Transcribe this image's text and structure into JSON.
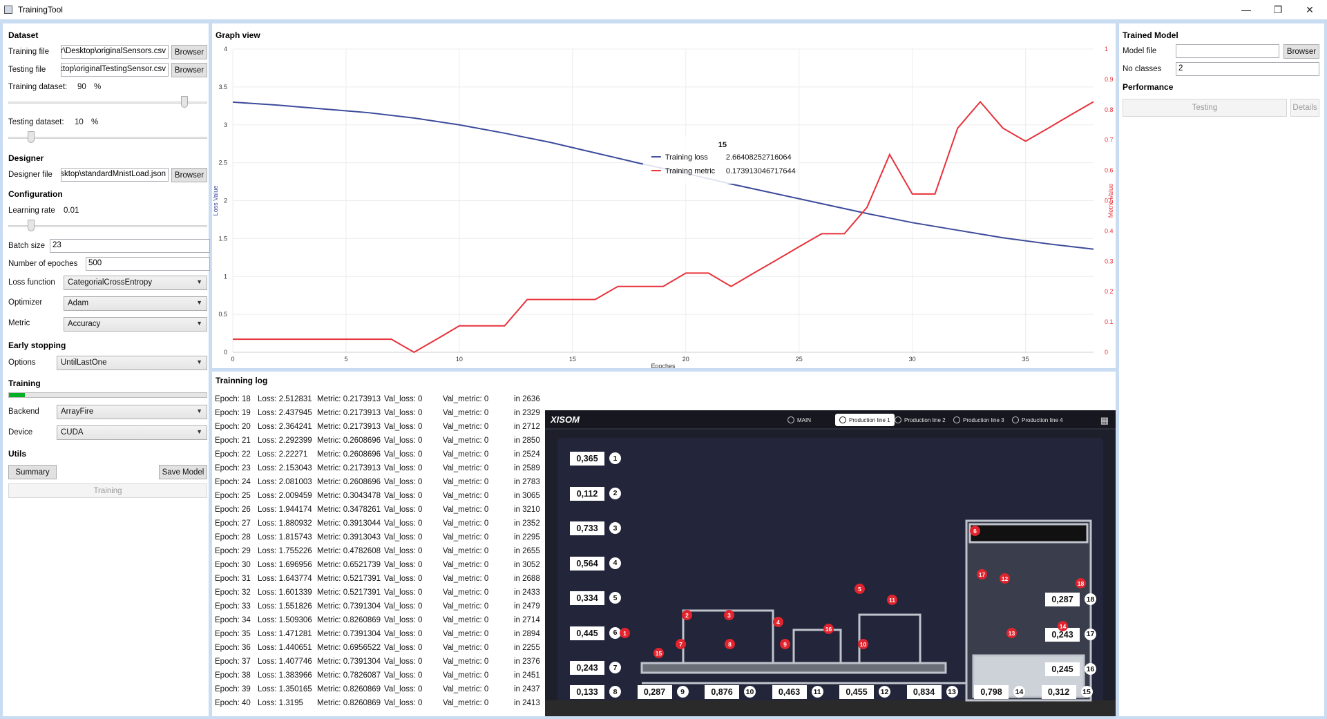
{
  "window": {
    "title": "TrainingTool"
  },
  "dataset": {
    "heading": "Dataset",
    "training_file_label": "Training file",
    "training_file_value": "C:\\Users\\user\\Desktop\\originalSensors.csv",
    "testing_file_label": "Testing file",
    "testing_file_value": "C:\\Users\\user\\Desktop\\originalTestingSensor.csv",
    "browse_label": "Browser",
    "training_dataset_label": "Training dataset:",
    "training_dataset_value": "90",
    "training_dataset_fraction": 0.9,
    "testing_dataset_label": "Testing dataset:",
    "testing_dataset_value": "10",
    "testing_dataset_fraction": 0.1,
    "percent": "%"
  },
  "designer": {
    "heading": "Designer",
    "file_label": "Designer file",
    "file_value": "C:\\Users\\user\\Desktop\\standardMnistLoad.json",
    "browse_label": "Browser"
  },
  "configuration": {
    "heading": "Configuration",
    "learning_rate_label": "Learning rate",
    "learning_rate_value": "0.01",
    "learning_rate_fraction": 0.1,
    "batch_size_label": "Batch size",
    "batch_size_value": "23",
    "epochs_label": "Number of epoches",
    "epochs_value": "500",
    "loss_label": "Loss function",
    "loss_value": "CategorialCrossEntropy",
    "optimizer_label": "Optimizer",
    "optimizer_value": "Adam",
    "metric_label": "Metric",
    "metric_value": "Accuracy"
  },
  "early_stopping": {
    "heading": "Early stopping",
    "options_label": "Options",
    "options_value": "UntilLastOne"
  },
  "training": {
    "heading": "Training",
    "progress_fraction": 0.08,
    "backend_label": "Backend",
    "backend_value": "ArrayFire",
    "device_label": "Device",
    "device_value": "CUDA"
  },
  "utils": {
    "heading": "Utils",
    "summary_label": "Summary",
    "save_model_label": "Save Model",
    "training_button_label": "Training"
  },
  "graph": {
    "heading": "Graph view"
  },
  "chart_data": {
    "type": "line",
    "xlabel": "Epoches",
    "ylabel": "Loss Value",
    "y2label": "Metric Value",
    "xlim": [
      0,
      38
    ],
    "ylim": [
      0,
      4
    ],
    "y2lim": [
      0,
      1
    ],
    "xticks": [
      0,
      5,
      10,
      15,
      20,
      25,
      30,
      35
    ],
    "yticks": [
      0,
      0.5,
      1,
      1.5,
      2,
      2.5,
      3,
      3.5,
      4
    ],
    "y2ticks": [
      0,
      0.1,
      0.2,
      0.3,
      0.4,
      0.5,
      0.6,
      0.7,
      0.8,
      0.9,
      1
    ],
    "grid": true,
    "tooltip": {
      "title": "15",
      "rows": [
        {
          "name": "Training loss",
          "value": "2.66408252716064",
          "color": "#3b4a9a"
        },
        {
          "name": "Training metric",
          "value": "0.173913046717644",
          "color": "#e8303a"
        }
      ]
    },
    "series": [
      {
        "name": "Training loss",
        "axis": "left",
        "color": "#3b4a9a",
        "x": [
          0,
          2,
          4,
          6,
          8,
          10,
          12,
          14,
          16,
          18,
          20,
          22,
          24,
          26,
          28,
          30,
          32,
          34,
          36,
          38
        ],
        "values": [
          3.3,
          3.26,
          3.21,
          3.16,
          3.09,
          3.0,
          2.89,
          2.77,
          2.63,
          2.49,
          2.36,
          2.22,
          2.09,
          1.96,
          1.83,
          1.71,
          1.61,
          1.51,
          1.43,
          1.36
        ]
      },
      {
        "name": "Training metric",
        "axis": "right",
        "color": "#e8303a",
        "x": [
          0,
          1,
          2,
          3,
          4,
          5,
          6,
          7,
          8,
          9,
          10,
          11,
          12,
          13,
          14,
          15,
          16,
          17,
          18,
          19,
          20,
          21,
          22,
          23,
          24,
          25,
          26,
          27,
          28,
          29,
          30,
          31,
          32,
          33,
          34,
          35,
          36,
          37,
          38
        ],
        "values": [
          0.043,
          0.043,
          0.043,
          0.043,
          0.043,
          0.043,
          0.043,
          0.043,
          0.0,
          0.043,
          0.087,
          0.087,
          0.087,
          0.174,
          0.174,
          0.174,
          0.174,
          0.217,
          0.217,
          0.217,
          0.261,
          0.261,
          0.217,
          0.261,
          0.304,
          0.348,
          0.391,
          0.391,
          0.478,
          0.652,
          0.522,
          0.522,
          0.739,
          0.826,
          0.739,
          0.696,
          0.739,
          0.783,
          0.826
        ]
      }
    ]
  },
  "log": {
    "heading": "Trainning log",
    "rows": [
      {
        "epoch": "Epoch: 18",
        "loss": "Loss: 2.512831",
        "metric": "Metric: 0.2173913",
        "val_loss": "Val_loss: 0",
        "val_metric": "Val_metric: 0",
        "time": "in 2636"
      },
      {
        "epoch": "Epoch: 19",
        "loss": "Loss: 2.437945",
        "metric": "Metric: 0.2173913",
        "val_loss": "Val_loss: 0",
        "val_metric": "Val_metric: 0",
        "time": "in 2329"
      },
      {
        "epoch": "Epoch: 20",
        "loss": "Loss: 2.364241",
        "metric": "Metric: 0.2173913",
        "val_loss": "Val_loss: 0",
        "val_metric": "Val_metric: 0",
        "time": "in 2712"
      },
      {
        "epoch": "Epoch: 21",
        "loss": "Loss: 2.292399",
        "metric": "Metric: 0.2608696",
        "val_loss": "Val_loss: 0",
        "val_metric": "Val_metric: 0",
        "time": "in 2850"
      },
      {
        "epoch": "Epoch: 22",
        "loss": "Loss: 2.22271",
        "metric": "Metric: 0.2608696",
        "val_loss": "Val_loss: 0",
        "val_metric": "Val_metric: 0",
        "time": "in 2524"
      },
      {
        "epoch": "Epoch: 23",
        "loss": "Loss: 2.153043",
        "metric": "Metric: 0.2173913",
        "val_loss": "Val_loss: 0",
        "val_metric": "Val_metric: 0",
        "time": "in 2589"
      },
      {
        "epoch": "Epoch: 24",
        "loss": "Loss: 2.081003",
        "metric": "Metric: 0.2608696",
        "val_loss": "Val_loss: 0",
        "val_metric": "Val_metric: 0",
        "time": "in 2783"
      },
      {
        "epoch": "Epoch: 25",
        "loss": "Loss: 2.009459",
        "metric": "Metric: 0.3043478",
        "val_loss": "Val_loss: 0",
        "val_metric": "Val_metric: 0",
        "time": "in 3065"
      },
      {
        "epoch": "Epoch: 26",
        "loss": "Loss: 1.944174",
        "metric": "Metric: 0.3478261",
        "val_loss": "Val_loss: 0",
        "val_metric": "Val_metric: 0",
        "time": "in 3210"
      },
      {
        "epoch": "Epoch: 27",
        "loss": "Loss: 1.880932",
        "metric": "Metric: 0.3913044",
        "val_loss": "Val_loss: 0",
        "val_metric": "Val_metric: 0",
        "time": "in 2352"
      },
      {
        "epoch": "Epoch: 28",
        "loss": "Loss: 1.815743",
        "metric": "Metric: 0.3913043",
        "val_loss": "Val_loss: 0",
        "val_metric": "Val_metric: 0",
        "time": "in 2295"
      },
      {
        "epoch": "Epoch: 29",
        "loss": "Loss: 1.755226",
        "metric": "Metric: 0.4782608",
        "val_loss": "Val_loss: 0",
        "val_metric": "Val_metric: 0",
        "time": "in 2655"
      },
      {
        "epoch": "Epoch: 30",
        "loss": "Loss: 1.696956",
        "metric": "Metric: 0.6521739",
        "val_loss": "Val_loss: 0",
        "val_metric": "Val_metric: 0",
        "time": "in 3052"
      },
      {
        "epoch": "Epoch: 31",
        "loss": "Loss: 1.643774",
        "metric": "Metric: 0.5217391",
        "val_loss": "Val_loss: 0",
        "val_metric": "Val_metric: 0",
        "time": "in 2688"
      },
      {
        "epoch": "Epoch: 32",
        "loss": "Loss: 1.601339",
        "metric": "Metric: 0.5217391",
        "val_loss": "Val_loss: 0",
        "val_metric": "Val_metric: 0",
        "time": "in 2433"
      },
      {
        "epoch": "Epoch: 33",
        "loss": "Loss: 1.551826",
        "metric": "Metric: 0.7391304",
        "val_loss": "Val_loss: 0",
        "val_metric": "Val_metric: 0",
        "time": "in 2479"
      },
      {
        "epoch": "Epoch: 34",
        "loss": "Loss: 1.509306",
        "metric": "Metric: 0.8260869",
        "val_loss": "Val_loss: 0",
        "val_metric": "Val_metric: 0",
        "time": "in 2714"
      },
      {
        "epoch": "Epoch: 35",
        "loss": "Loss: 1.471281",
        "metric": "Metric: 0.7391304",
        "val_loss": "Val_loss: 0",
        "val_metric": "Val_metric: 0",
        "time": "in 2894"
      },
      {
        "epoch": "Epoch: 36",
        "loss": "Loss: 1.440651",
        "metric": "Metric: 0.6956522",
        "val_loss": "Val_loss: 0",
        "val_metric": "Val_metric: 0",
        "time": "in 2255"
      },
      {
        "epoch": "Epoch: 37",
        "loss": "Loss: 1.407746",
        "metric": "Metric: 0.7391304",
        "val_loss": "Val_loss: 0",
        "val_metric": "Val_metric: 0",
        "time": "in 2376"
      },
      {
        "epoch": "Epoch: 38",
        "loss": "Loss: 1.383966",
        "metric": "Metric: 0.7826087",
        "val_loss": "Val_loss: 0",
        "val_metric": "Val_metric: 0",
        "time": "in 2451"
      },
      {
        "epoch": "Epoch: 39",
        "loss": "Loss: 1.350165",
        "metric": "Metric: 0.8260869",
        "val_loss": "Val_loss: 0",
        "val_metric": "Val_metric: 0",
        "time": "in 2437"
      },
      {
        "epoch": "Epoch: 40",
        "loss": "Loss: 1.3195",
        "metric": "Metric: 0.8260869",
        "val_loss": "Val_loss: 0",
        "val_metric": "Val_metric: 0",
        "time": "in 2413"
      }
    ]
  },
  "trained_model": {
    "heading": "Trained Model",
    "model_file_label": "Model file",
    "model_file_value": "",
    "browse_label": "Browser",
    "no_classes_label": "No classes",
    "no_classes_value": "2",
    "performance_heading": "Performance",
    "testing_label": "Testing",
    "details_label": "Details"
  },
  "hmi": {
    "logo": "XISOM",
    "tabs": [
      "MAIN",
      "Production line 1",
      "Production line 2",
      "Production line 3",
      "Production line 4"
    ],
    "active_tab": 1,
    "values_left": [
      "0,365",
      "0,112",
      "0,733",
      "0,564",
      "0,334",
      "0,445",
      "0,243"
    ],
    "nums_left": [
      "1",
      "2",
      "3",
      "4",
      "5",
      "6",
      "7"
    ],
    "values_bottom": [
      "0,133",
      "0,287",
      "0,876",
      "0,463",
      "0,455",
      "0,834",
      "0,798",
      "0,312"
    ],
    "nums_bottom": [
      "8",
      "9",
      "10",
      "11",
      "12",
      "13",
      "14",
      "15"
    ],
    "values_right": [
      "0,287",
      "0,243",
      "0,245"
    ],
    "nums_right": [
      "18",
      "17",
      "16"
    ],
    "markers": [
      "1",
      "15",
      "2",
      "3",
      "7",
      "8",
      "4",
      "16",
      "9",
      "5",
      "11",
      "10",
      "6",
      "17",
      "12",
      "18",
      "14",
      "13"
    ]
  }
}
